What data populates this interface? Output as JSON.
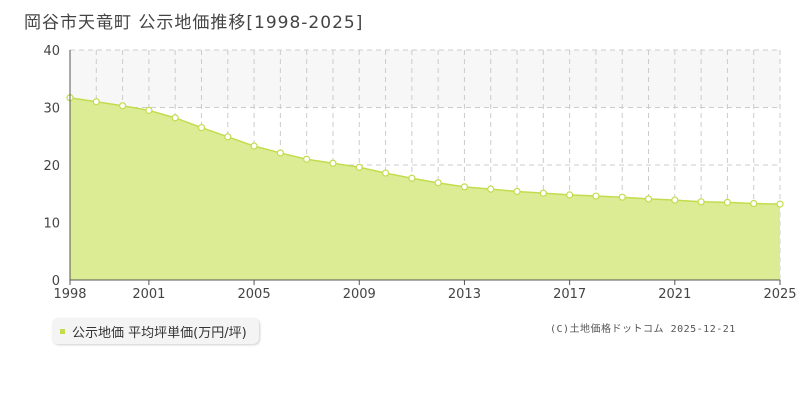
{
  "title": "岡谷市天竜町 公示地価推移[1998-2025]",
  "legend": {
    "label": "公示地価 平均坪単価(万円/坪)"
  },
  "credit": "(C)土地価格ドットコム 2025-12-21",
  "colors": {
    "area": "#dcec94",
    "line": "#c3dc4e",
    "marker_fill": "#ffffff",
    "band": "#f7f7f7"
  },
  "chart_data": {
    "type": "area",
    "title": "岡谷市天竜町 公示地価推移[1998-2025]",
    "xlabel": "",
    "ylabel": "",
    "xlim": [
      1998,
      2025
    ],
    "ylim": [
      0,
      40
    ],
    "yticks": [
      0,
      10,
      20,
      30,
      40
    ],
    "xticks": [
      1998,
      2001,
      2005,
      2009,
      2013,
      2017,
      2021,
      2025
    ],
    "grid": true,
    "legend_position": "bottom-left",
    "series": [
      {
        "name": "公示地価 平均坪単価(万円/坪)",
        "x": [
          1998,
          1999,
          2000,
          2001,
          2002,
          2003,
          2004,
          2005,
          2006,
          2007,
          2008,
          2009,
          2010,
          2011,
          2012,
          2013,
          2014,
          2015,
          2016,
          2017,
          2018,
          2019,
          2020,
          2021,
          2022,
          2023,
          2024,
          2025
        ],
        "y": [
          31.7,
          31.0,
          30.3,
          29.5,
          28.2,
          26.5,
          24.9,
          23.3,
          22.1,
          21.0,
          20.3,
          19.6,
          18.6,
          17.7,
          16.9,
          16.2,
          15.8,
          15.4,
          15.1,
          14.8,
          14.6,
          14.4,
          14.1,
          13.9,
          13.6,
          13.5,
          13.3,
          13.2
        ]
      }
    ]
  }
}
